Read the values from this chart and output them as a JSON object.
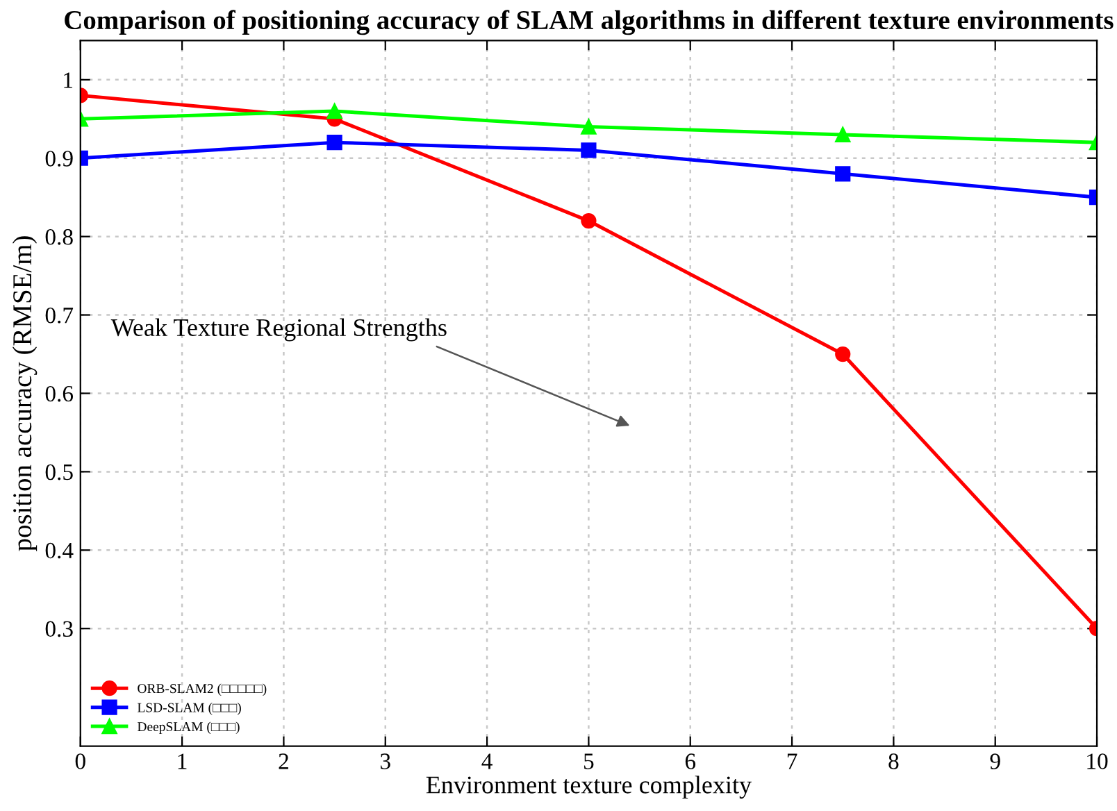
{
  "chart_data": {
    "type": "line",
    "title": "Comparison of positioning accuracy of SLAM algorithms in different texture environments",
    "xlabel": "Environment texture complexity",
    "ylabel": "position accuracy (RMSE/m)",
    "x": [
      0,
      2.5,
      5,
      7.5,
      10
    ],
    "series": [
      {
        "name": "ORB-SLAM2 (□□□□□)",
        "color": "#ff0000",
        "marker": "circle",
        "values": [
          0.98,
          0.95,
          0.82,
          0.65,
          0.3
        ]
      },
      {
        "name": "LSD-SLAM (□□□)",
        "color": "#0000ff",
        "marker": "square",
        "values": [
          0.9,
          0.92,
          0.91,
          0.88,
          0.85
        ]
      },
      {
        "name": "DeepSLAM (□□□)",
        "color": "#00ff00",
        "marker": "triangle",
        "values": [
          0.95,
          0.96,
          0.94,
          0.93,
          0.92
        ]
      }
    ],
    "annotations": [
      "Weak Texture Regional Strengths"
    ],
    "xlim": [
      0,
      10
    ],
    "xticks": [
      0,
      1,
      2,
      3,
      4,
      5,
      6,
      7,
      8,
      9,
      10
    ],
    "ylim": [
      0.15,
      1.05
    ],
    "yticks": [
      0.3,
      0.4,
      0.5,
      0.6,
      0.7,
      0.8,
      0.9,
      1
    ],
    "grid": true,
    "legend": "bottom left",
    "line_style": "solid"
  }
}
